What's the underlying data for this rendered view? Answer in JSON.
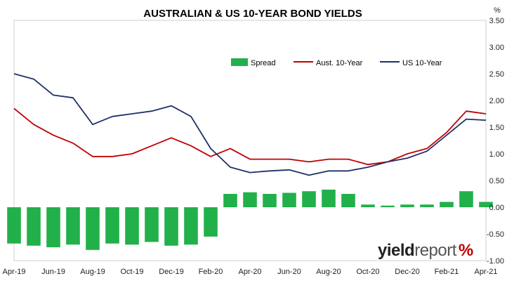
{
  "chart_data": {
    "type": "line",
    "title": "AUSTRALIAN & US 10-YEAR BOND YIELDS",
    "ylabel": "%",
    "ylim": [
      -1.0,
      3.5
    ],
    "yticks": [
      "3.50",
      "3.00",
      "2.50",
      "2.00",
      "1.50",
      "1.00",
      "0.50",
      "0.00",
      "-0.50",
      "-1.00"
    ],
    "xticks": [
      "Apr-19",
      "Jun-19",
      "Aug-19",
      "Oct-19",
      "Dec-19",
      "Feb-20",
      "Apr-20",
      "Jun-20",
      "Aug-20",
      "Oct-20",
      "Dec-20",
      "Feb-21",
      "Apr-21"
    ],
    "grid": false,
    "legend_position": "top-right",
    "x": [
      "Apr-19",
      "May-19",
      "Jun-19",
      "Jul-19",
      "Aug-19",
      "Sep-19",
      "Oct-19",
      "Nov-19",
      "Dec-19",
      "Jan-20",
      "Feb-20",
      "Mar-20",
      "Apr-20",
      "May-20",
      "Jun-20",
      "Jul-20",
      "Aug-20",
      "Sep-20",
      "Oct-20",
      "Nov-20",
      "Dec-20",
      "Jan-21",
      "Feb-21",
      "Mar-21",
      "Apr-21"
    ],
    "series": [
      {
        "name": "Spread",
        "type": "bar",
        "color": "#22b04b",
        "values": [
          -0.68,
          -0.72,
          -0.75,
          -0.7,
          -0.8,
          -0.68,
          -0.7,
          -0.65,
          -0.72,
          -0.7,
          -0.55,
          0.25,
          0.28,
          0.25,
          0.27,
          0.3,
          0.33,
          0.25,
          0.05,
          0.03,
          0.05,
          0.05,
          0.1,
          0.3,
          0.1
        ]
      },
      {
        "name": "Aust. 10-Year",
        "type": "line",
        "color": "#c00000",
        "values": [
          1.85,
          1.55,
          1.35,
          1.2,
          0.95,
          0.95,
          1.0,
          1.15,
          1.3,
          1.15,
          0.95,
          1.1,
          0.9,
          0.9,
          0.9,
          0.85,
          0.9,
          0.9,
          0.8,
          0.85,
          1.0,
          1.1,
          1.4,
          1.8,
          1.75
        ]
      },
      {
        "name": "US 10-Year",
        "type": "line",
        "color": "#1f3068",
        "values": [
          2.5,
          2.4,
          2.1,
          2.05,
          1.55,
          1.7,
          1.75,
          1.8,
          1.9,
          1.7,
          1.1,
          0.75,
          0.65,
          0.68,
          0.7,
          0.6,
          0.68,
          0.68,
          0.75,
          0.85,
          0.92,
          1.05,
          1.35,
          1.65,
          1.63
        ]
      }
    ]
  },
  "branding": {
    "yield": "yield",
    "report": "report",
    "pct": "%"
  }
}
